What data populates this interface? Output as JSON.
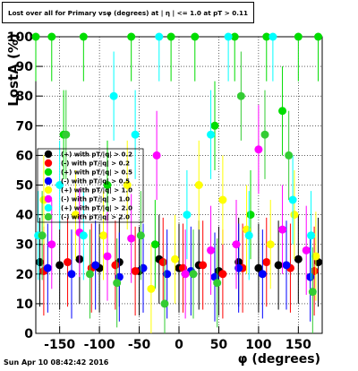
{
  "title": "Lost over all for Primary vsφ (degrees) at | η | <= 1.0 at pT > 0.11",
  "timestamp": "Sun Apr 10 08:42:42 2016",
  "chart_data": {
    "type": "scatter",
    "xlabel": "φ (degrees)",
    "ylabel": "LostA (%)",
    "xlim": [
      -180,
      180
    ],
    "ylim": [
      0,
      100
    ],
    "xticks": [
      -150,
      -100,
      -50,
      0,
      50,
      100,
      150
    ],
    "yticks": [
      0,
      10,
      20,
      30,
      40,
      50,
      60,
      70,
      80,
      90,
      100
    ],
    "grid": true,
    "legend_placement": "center-left",
    "series": [
      {
        "name": "(+) with pT/|q| > 0.2",
        "color": "#000000",
        "points": [
          [
            -175,
            24
          ],
          [
            -150,
            23
          ],
          [
            -125,
            25
          ],
          [
            -100,
            22
          ],
          [
            -75,
            24
          ],
          [
            -50,
            21
          ],
          [
            -25,
            25
          ],
          [
            0,
            22
          ],
          [
            25,
            23
          ],
          [
            50,
            21
          ],
          [
            75,
            24
          ],
          [
            100,
            22
          ],
          [
            125,
            23
          ],
          [
            150,
            25
          ],
          [
            175,
            24
          ]
        ]
      },
      {
        "name": "(-) with pT/|q| > 0.2",
        "color": "#ff0000",
        "points": [
          [
            -170,
            21
          ],
          [
            -140,
            24
          ],
          [
            -110,
            22
          ],
          [
            -80,
            23
          ],
          [
            -55,
            21
          ],
          [
            -20,
            24
          ],
          [
            5,
            22
          ],
          [
            30,
            23
          ],
          [
            55,
            20
          ],
          [
            80,
            22
          ],
          [
            110,
            24
          ],
          [
            140,
            22
          ],
          [
            170,
            21
          ]
        ]
      },
      {
        "name": "(+) with pT/|q| > 0.5",
        "color": "#00dd00",
        "points": [
          [
            -180,
            100
          ],
          [
            -160,
            100
          ],
          [
            -145,
            67
          ],
          [
            -120,
            100
          ],
          [
            -90,
            50
          ],
          [
            -60,
            100
          ],
          [
            -30,
            30
          ],
          [
            -10,
            100
          ],
          [
            20,
            100
          ],
          [
            45,
            70
          ],
          [
            70,
            100
          ],
          [
            90,
            40
          ],
          [
            110,
            100
          ],
          [
            130,
            75
          ],
          [
            150,
            100
          ],
          [
            175,
            100
          ]
        ]
      },
      {
        "name": "(-) with pT/|q| > 0.5",
        "color": "#0000ff",
        "points": [
          [
            -165,
            22
          ],
          [
            -135,
            20
          ],
          [
            -105,
            23
          ],
          [
            -75,
            19
          ],
          [
            -45,
            22
          ],
          [
            -15,
            20
          ],
          [
            15,
            21
          ],
          [
            45,
            19
          ],
          [
            75,
            22
          ],
          [
            105,
            20
          ],
          [
            135,
            23
          ],
          [
            165,
            19
          ]
        ]
      },
      {
        "name": "(+) with pT/|q| > 1.0",
        "color": "#ffff00",
        "points": [
          [
            -170,
            45
          ],
          [
            -130,
            40
          ],
          [
            -95,
            33
          ],
          [
            -65,
            50
          ],
          [
            -35,
            15
          ],
          [
            -5,
            25
          ],
          [
            25,
            50
          ],
          [
            55,
            45
          ],
          [
            85,
            35
          ],
          [
            115,
            30
          ],
          [
            145,
            40
          ],
          [
            172,
            26
          ]
        ]
      },
      {
        "name": "(-) with pT/|q| > 1.0",
        "color": "#ff00ff",
        "points": [
          [
            -160,
            30
          ],
          [
            -125,
            34
          ],
          [
            -90,
            26
          ],
          [
            -60,
            32
          ],
          [
            -28,
            60
          ],
          [
            8,
            20
          ],
          [
            40,
            28
          ],
          [
            72,
            30
          ],
          [
            100,
            62
          ],
          [
            130,
            35
          ],
          [
            160,
            28
          ]
        ]
      },
      {
        "name": "(+) with pT/|q| > 2.0",
        "color": "#00ffff",
        "points": [
          [
            -177,
            33
          ],
          [
            -150,
            50
          ],
          [
            -120,
            33
          ],
          [
            -82,
            80
          ],
          [
            -55,
            67
          ],
          [
            -25,
            100
          ],
          [
            10,
            40
          ],
          [
            40,
            67
          ],
          [
            62,
            100
          ],
          [
            88,
            33
          ],
          [
            118,
            100
          ],
          [
            143,
            45
          ],
          [
            166,
            33
          ]
        ]
      },
      {
        "name": "(-) with pT/|q| > 2.0",
        "color": "#33cc33",
        "points": [
          [
            -172,
            33
          ],
          [
            -142,
            67
          ],
          [
            -112,
            20
          ],
          [
            -78,
            17
          ],
          [
            -48,
            33
          ],
          [
            -18,
            10
          ],
          [
            18,
            20
          ],
          [
            48,
            17
          ],
          [
            78,
            80
          ],
          [
            108,
            67
          ],
          [
            138,
            60
          ],
          [
            168,
            14
          ]
        ]
      }
    ]
  }
}
